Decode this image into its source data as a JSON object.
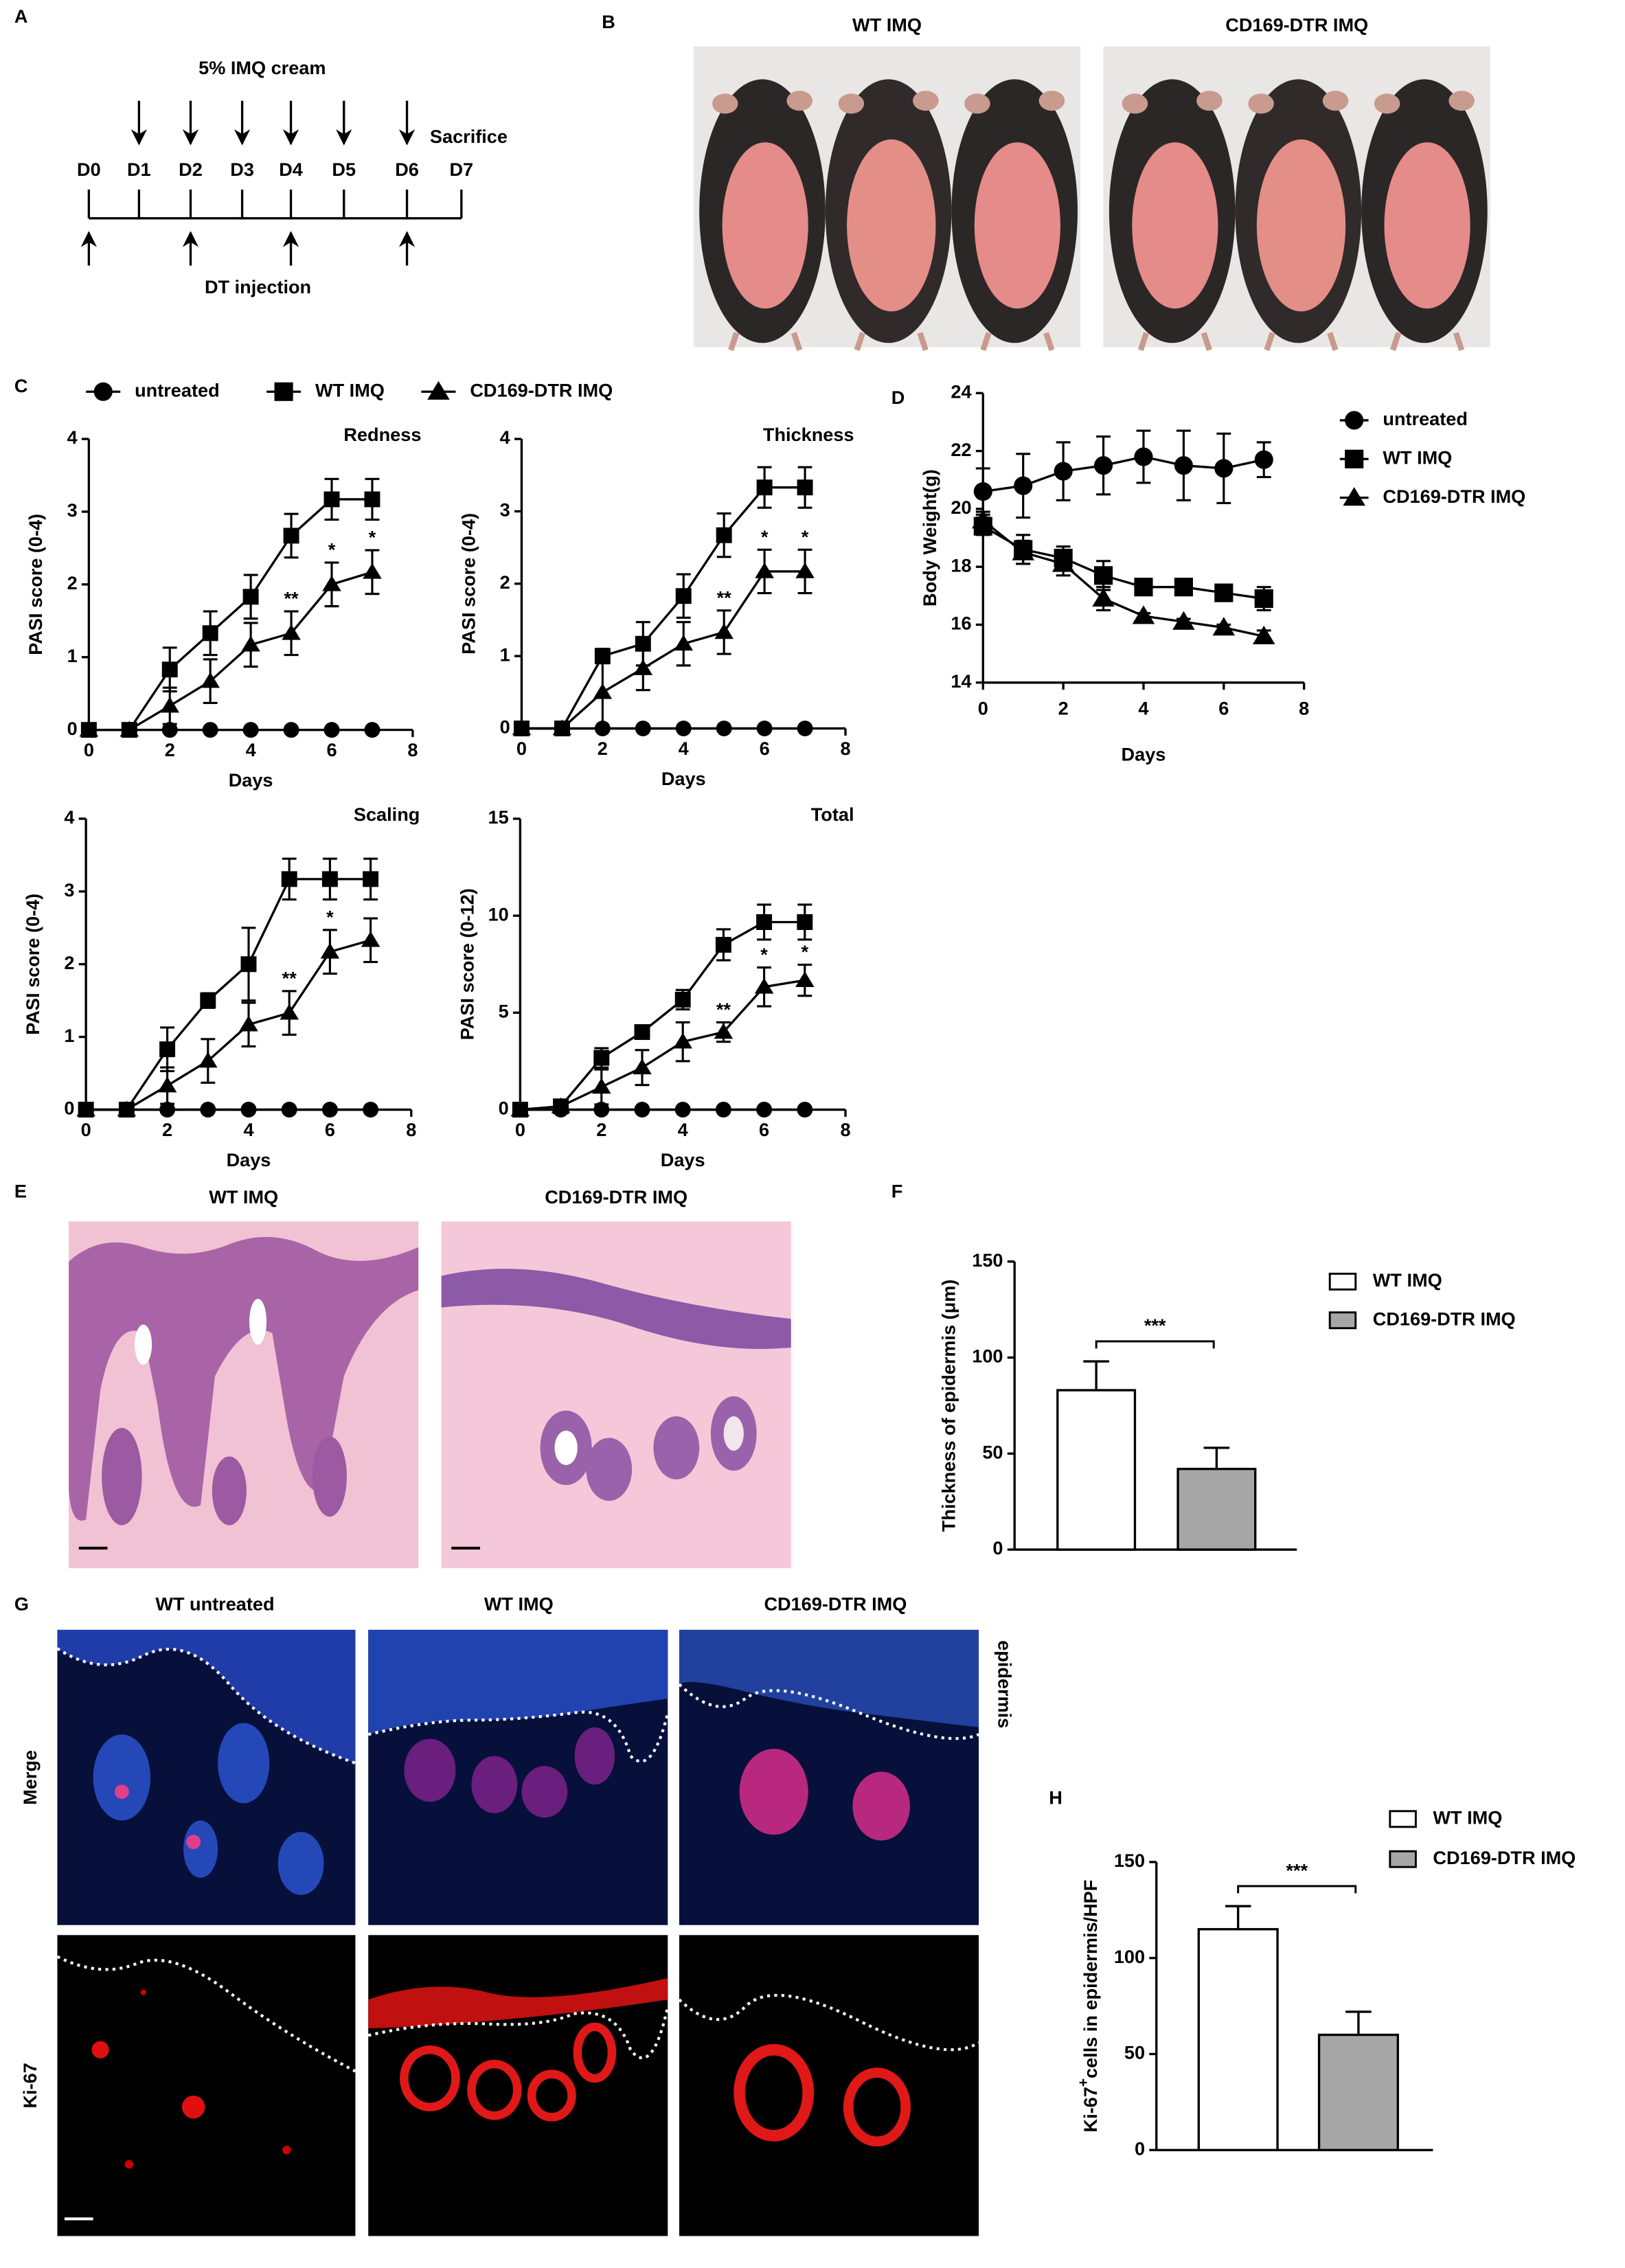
{
  "figure": {
    "panel_labels": [
      "A",
      "B",
      "C",
      "D",
      "E",
      "F",
      "G",
      "H"
    ],
    "timeline": {
      "treatment": "5% IMQ cream",
      "end": "Sacrifice",
      "injection": "DT injection",
      "days": [
        "D0",
        "D1",
        "D2",
        "D3",
        "D4",
        "D5",
        "D6",
        "D7"
      ]
    },
    "photos": {
      "titles": [
        "WT IMQ",
        "CD169-DTR IMQ"
      ]
    },
    "histology": {
      "titles": [
        "WT IMQ",
        "CD169-DTR IMQ"
      ]
    },
    "immunofluorescence": {
      "columns": [
        "WT untreated",
        "WT IMQ",
        "CD169-DTR IMQ"
      ],
      "rows": [
        "Merge",
        "Ki-67"
      ],
      "layer_label": "epidermis"
    }
  },
  "chart_data": [
    {
      "type": "line",
      "title": "Redness",
      "xlabel": "Days",
      "ylabel": "PASI score (0-4)",
      "legend": "top",
      "x": [
        0,
        1,
        2,
        3,
        4,
        5,
        6,
        7
      ],
      "xlim": [
        0,
        8
      ],
      "xticks": [
        0,
        2,
        4,
        6,
        8
      ],
      "ylim": [
        0,
        4
      ],
      "yticks": [
        0,
        1,
        2,
        3,
        4
      ],
      "series": [
        {
          "name": "untreated",
          "color": "#000000",
          "marker": "circle",
          "values": [
            0,
            0,
            0,
            0,
            0,
            0,
            0,
            0
          ]
        },
        {
          "name": "WT IMQ",
          "color": "#000000",
          "marker": "square",
          "values": [
            0,
            0,
            0.83,
            1.33,
            1.83,
            2.67,
            3.17,
            3.17
          ],
          "errors": [
            0,
            0,
            0.3,
            0.3,
            0.3,
            0.3,
            0.28,
            0.28
          ]
        },
        {
          "name": "CD169-DTR IMQ",
          "color": "#000000",
          "marker": "triangle",
          "values": [
            0,
            0,
            0.33,
            0.67,
            1.17,
            1.33,
            2,
            2.17
          ],
          "errors": [
            0,
            0,
            0.25,
            0.3,
            0.3,
            0.3,
            0.3,
            0.3
          ]
        }
      ],
      "annotations": [
        {
          "text": "**",
          "x": 5
        },
        {
          "text": "*",
          "x": 6
        },
        {
          "text": "*",
          "x": 7
        }
      ]
    },
    {
      "type": "line",
      "title": "Thickness",
      "xlabel": "Days",
      "ylabel": "PASI score (0-4)",
      "x": [
        0,
        1,
        2,
        3,
        4,
        5,
        6,
        7
      ],
      "xlim": [
        0,
        8
      ],
      "xticks": [
        0,
        2,
        4,
        6,
        8
      ],
      "ylim": [
        0,
        4
      ],
      "yticks": [
        0,
        1,
        2,
        3,
        4
      ],
      "series": [
        {
          "color": "#000000",
          "marker": "circle",
          "values": [
            0,
            0,
            0,
            0,
            0,
            0,
            0,
            0
          ]
        },
        {
          "color": "#000000",
          "marker": "square",
          "values": [
            0,
            0,
            1,
            1.17,
            1.83,
            2.67,
            3.33,
            3.33
          ],
          "errors": [
            0,
            0,
            0.1,
            0.3,
            0.3,
            0.3,
            0.28,
            0.28
          ]
        },
        {
          "color": "#000000",
          "marker": "triangle",
          "values": [
            0,
            0,
            0.5,
            0.83,
            1.17,
            1.33,
            2.17,
            2.17
          ],
          "errors": [
            0,
            0,
            0.5,
            0.3,
            0.3,
            0.3,
            0.3,
            0.3
          ]
        }
      ],
      "annotations": [
        {
          "text": "**",
          "x": 5
        },
        {
          "text": "*",
          "x": 6
        },
        {
          "text": "*",
          "x": 7
        }
      ]
    },
    {
      "type": "line",
      "title": "Scaling",
      "xlabel": "Days",
      "ylabel": "PASI score (0-4)",
      "x": [
        0,
        1,
        2,
        3,
        4,
        5,
        6,
        7
      ],
      "xlim": [
        0,
        8
      ],
      "xticks": [
        0,
        2,
        4,
        6,
        8
      ],
      "ylim": [
        0,
        4
      ],
      "yticks": [
        0,
        1,
        2,
        3,
        4
      ],
      "series": [
        {
          "color": "#000000",
          "marker": "circle",
          "values": [
            0,
            0,
            0,
            0,
            0,
            0,
            0,
            0
          ]
        },
        {
          "color": "#000000",
          "marker": "square",
          "values": [
            0,
            0,
            0.83,
            1.5,
            2,
            3.17,
            3.17,
            3.17
          ],
          "errors": [
            0,
            0,
            0.3,
            0.1,
            0.5,
            0.28,
            0.28,
            0.28
          ]
        },
        {
          "color": "#000000",
          "marker": "triangle",
          "values": [
            0,
            0,
            0.33,
            0.67,
            1.17,
            1.33,
            2.17,
            2.33
          ],
          "errors": [
            0,
            0,
            0.25,
            0.3,
            0.3,
            0.3,
            0.3,
            0.3
          ]
        }
      ],
      "annotations": [
        {
          "text": "**",
          "x": 5
        },
        {
          "text": "*",
          "x": 6
        }
      ]
    },
    {
      "type": "line",
      "title": "Total",
      "xlabel": "Days",
      "ylabel": "PASI score (0-12)",
      "x": [
        0,
        1,
        2,
        3,
        4,
        5,
        6,
        7
      ],
      "xlim": [
        0,
        8
      ],
      "xticks": [
        0,
        2,
        4,
        6,
        8
      ],
      "ylim": [
        0,
        15
      ],
      "yticks": [
        0,
        5,
        10,
        15
      ],
      "series": [
        {
          "color": "#000000",
          "marker": "circle",
          "values": [
            0,
            0,
            0,
            0,
            0,
            0,
            0,
            0
          ]
        },
        {
          "color": "#000000",
          "marker": "square",
          "values": [
            0,
            0.17,
            2.67,
            4,
            5.67,
            8.5,
            9.67,
            9.67
          ],
          "errors": [
            0,
            0.2,
            0.5,
            0.3,
            0.5,
            0.8,
            0.9,
            0.9
          ]
        },
        {
          "color": "#000000",
          "marker": "triangle",
          "values": [
            0,
            0.17,
            1.17,
            2.17,
            3.5,
            4,
            6.33,
            6.67
          ],
          "errors": [
            0,
            0.2,
            0.9,
            0.9,
            1,
            0.5,
            1,
            0.8
          ]
        }
      ],
      "annotations": [
        {
          "text": "**",
          "x": 5
        },
        {
          "text": "*",
          "x": 6
        },
        {
          "text": "*",
          "x": 7
        }
      ]
    },
    {
      "type": "line",
      "xlabel": "Days",
      "ylabel": "Body Weight(g)",
      "legend": "right",
      "x": [
        0,
        1,
        2,
        3,
        4,
        5,
        6,
        7
      ],
      "xlim": [
        0,
        8
      ],
      "xticks": [
        0,
        2,
        4,
        6,
        8
      ],
      "ylim": [
        14,
        24
      ],
      "yticks": [
        14,
        16,
        18,
        20,
        22,
        24
      ],
      "series": [
        {
          "name": "untreated",
          "color": "#000000",
          "marker": "circle",
          "values": [
            20.6,
            20.8,
            21.3,
            21.5,
            21.8,
            21.5,
            21.4,
            21.7
          ],
          "errors": [
            0.8,
            1.1,
            1,
            1,
            0.9,
            1.2,
            1.2,
            0.6
          ]
        },
        {
          "name": "WT IMQ",
          "color": "#000000",
          "marker": "square",
          "values": [
            19.4,
            18.6,
            18.3,
            17.7,
            17.3,
            17.3,
            17.1,
            16.9
          ],
          "errors": [
            0.3,
            0.5,
            0.4,
            0.5,
            0.2,
            0.2,
            0.2,
            0.4
          ]
        },
        {
          "name": "CD169-DTR IMQ",
          "color": "#000000",
          "marker": "triangle",
          "values": [
            19.6,
            18.5,
            18.1,
            16.9,
            16.3,
            16.1,
            15.9,
            15.6
          ],
          "errors": [
            0.3,
            0.4,
            0.4,
            0.4,
            0.1,
            0.1,
            0.1,
            0.2
          ]
        }
      ]
    },
    {
      "type": "bar",
      "ylabel": [
        "Thickness of epidermis (μm)"
      ],
      "legend": "right",
      "ylim": [
        0,
        150
      ],
      "yticks": [
        0,
        50,
        100,
        150
      ],
      "series": [
        {
          "name": "WT IMQ",
          "color": "#ffffff",
          "values": [
            83
          ],
          "errors": [
            15
          ]
        },
        {
          "name": "CD169-DTR IMQ",
          "color": "#a6a6a6",
          "values": [
            42
          ],
          "errors": [
            11
          ]
        }
      ],
      "annotations": [
        {
          "text": "***"
        }
      ]
    },
    {
      "type": "bar",
      "ylabel": [
        "Ki-67",
        "+",
        "cells in epidermis/HPF"
      ],
      "legend": "right",
      "ylim": [
        0,
        150
      ],
      "yticks": [
        0,
        50,
        100,
        150
      ],
      "series": [
        {
          "name": "WT IMQ",
          "color": "#ffffff",
          "values": [
            115
          ],
          "errors": [
            12
          ]
        },
        {
          "name": "CD169-DTR IMQ",
          "color": "#a6a6a6",
          "values": [
            60
          ],
          "errors": [
            12
          ]
        }
      ],
      "annotations": [
        {
          "text": "***"
        }
      ]
    }
  ]
}
